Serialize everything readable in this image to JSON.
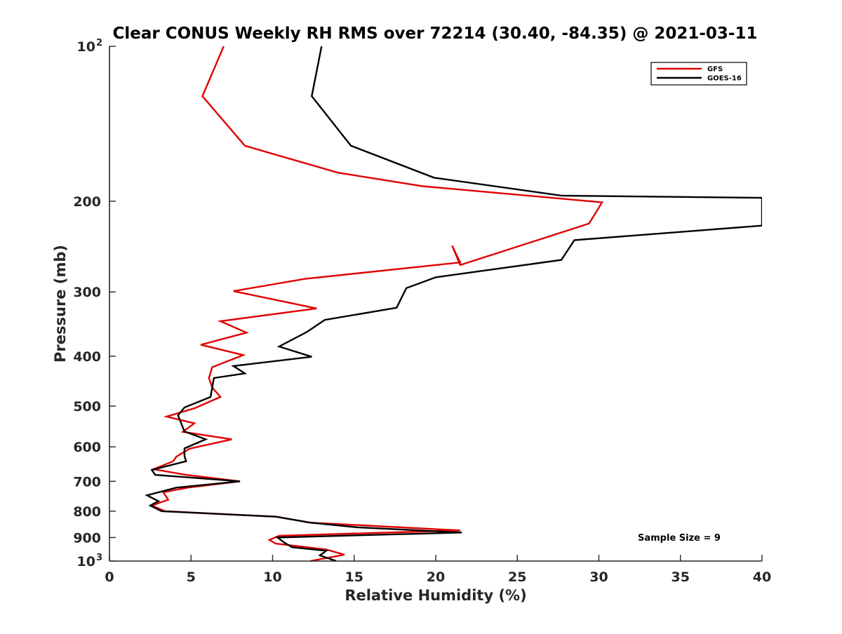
{
  "chart_data": {
    "type": "line",
    "title": "Clear CONUS Weekly RH RMS over 72214 (30.40, -84.35) @ 2021-03-11",
    "xlabel": "Relative Humidity (%)",
    "ylabel": "Pressure (mb)",
    "xlim": [
      0,
      40
    ],
    "ylim": [
      100,
      1000
    ],
    "yscale": "log",
    "y_reversed": true,
    "grid": false,
    "legend_position": "top-right",
    "x_ticks": [
      {
        "value": 0,
        "label": "0"
      },
      {
        "value": 5,
        "label": "5"
      },
      {
        "value": 10,
        "label": "10"
      },
      {
        "value": 15,
        "label": "15"
      },
      {
        "value": 20,
        "label": "20"
      },
      {
        "value": 25,
        "label": "25"
      },
      {
        "value": 30,
        "label": "30"
      },
      {
        "value": 35,
        "label": "35"
      },
      {
        "value": 40,
        "label": "40"
      }
    ],
    "y_ticks": [
      {
        "value": 100,
        "label": "10",
        "exp": "2"
      },
      {
        "value": 200,
        "label": "200"
      },
      {
        "value": 300,
        "label": "300"
      },
      {
        "value": 400,
        "label": "400"
      },
      {
        "value": 500,
        "label": "500"
      },
      {
        "value": 600,
        "label": "600"
      },
      {
        "value": 700,
        "label": "700"
      },
      {
        "value": 800,
        "label": "800"
      },
      {
        "value": 900,
        "label": "900"
      },
      {
        "value": 1000,
        "label": "10",
        "exp": "3"
      }
    ],
    "annotation": "Sample Size = 9",
    "series": [
      {
        "name": "GFS",
        "color": "#e00000",
        "points": [
          [
            7.0,
            100
          ],
          [
            5.7,
            125
          ],
          [
            8.3,
            156
          ],
          [
            14.0,
            176
          ],
          [
            19.2,
            187
          ],
          [
            30.2,
            201
          ],
          [
            29.4,
            221
          ],
          [
            21.5,
            266
          ],
          [
            21.0,
            244
          ],
          [
            21.5,
            263
          ],
          [
            12.0,
            283
          ],
          [
            7.6,
            299
          ],
          [
            12.7,
            323
          ],
          [
            6.8,
            342
          ],
          [
            8.4,
            360
          ],
          [
            5.6,
            380
          ],
          [
            8.2,
            398
          ],
          [
            6.3,
            420
          ],
          [
            6.1,
            441
          ],
          [
            6.3,
            460
          ],
          [
            6.8,
            480
          ],
          [
            5.2,
            505
          ],
          [
            3.5,
            524
          ],
          [
            5.2,
            540
          ],
          [
            4.5,
            561
          ],
          [
            7.5,
            580
          ],
          [
            4.9,
            605
          ],
          [
            4.1,
            627
          ],
          [
            3.9,
            640
          ],
          [
            2.7,
            663
          ],
          [
            4.7,
            680
          ],
          [
            8.0,
            700
          ],
          [
            4.8,
            720
          ],
          [
            3.3,
            735
          ],
          [
            3.6,
            760
          ],
          [
            2.6,
            780
          ],
          [
            3.4,
            800
          ],
          [
            10.2,
            820
          ],
          [
            12.3,
            842
          ],
          [
            21.5,
            872
          ],
          [
            10.4,
            893
          ],
          [
            9.8,
            910
          ],
          [
            10.2,
            925
          ],
          [
            13.3,
            950
          ],
          [
            14.4,
            972
          ],
          [
            12.3,
            1000
          ]
        ]
      },
      {
        "name": "GOES-16",
        "color": "#000000",
        "points": [
          [
            13.0,
            100
          ],
          [
            12.4,
            125
          ],
          [
            14.8,
            156
          ],
          [
            19.9,
            180
          ],
          [
            27.7,
            195
          ],
          [
            40.0,
            197
          ],
          [
            40.0,
            223
          ],
          [
            28.5,
            238
          ],
          [
            27.7,
            260
          ],
          [
            20.0,
            281
          ],
          [
            18.2,
            295
          ],
          [
            17.6,
            322
          ],
          [
            13.2,
            340
          ],
          [
            12.1,
            359
          ],
          [
            10.4,
            383
          ],
          [
            12.4,
            401
          ],
          [
            7.6,
            418
          ],
          [
            8.3,
            432
          ],
          [
            6.4,
            441
          ],
          [
            6.2,
            480
          ],
          [
            4.6,
            503
          ],
          [
            4.2,
            521
          ],
          [
            4.6,
            560
          ],
          [
            5.9,
            580
          ],
          [
            4.6,
            604
          ],
          [
            4.6,
            625
          ],
          [
            4.7,
            640
          ],
          [
            2.6,
            665
          ],
          [
            2.8,
            680
          ],
          [
            8.0,
            700
          ],
          [
            4.1,
            720
          ],
          [
            2.3,
            745
          ],
          [
            3.0,
            765
          ],
          [
            2.5,
            780
          ],
          [
            3.2,
            800
          ],
          [
            10.2,
            820
          ],
          [
            12.3,
            842
          ],
          [
            15.2,
            860
          ],
          [
            21.6,
            880
          ],
          [
            10.3,
            900
          ],
          [
            10.7,
            920
          ],
          [
            11.2,
            940
          ],
          [
            13.3,
            955
          ],
          [
            12.9,
            975
          ],
          [
            13.9,
            1000
          ]
        ]
      }
    ]
  }
}
